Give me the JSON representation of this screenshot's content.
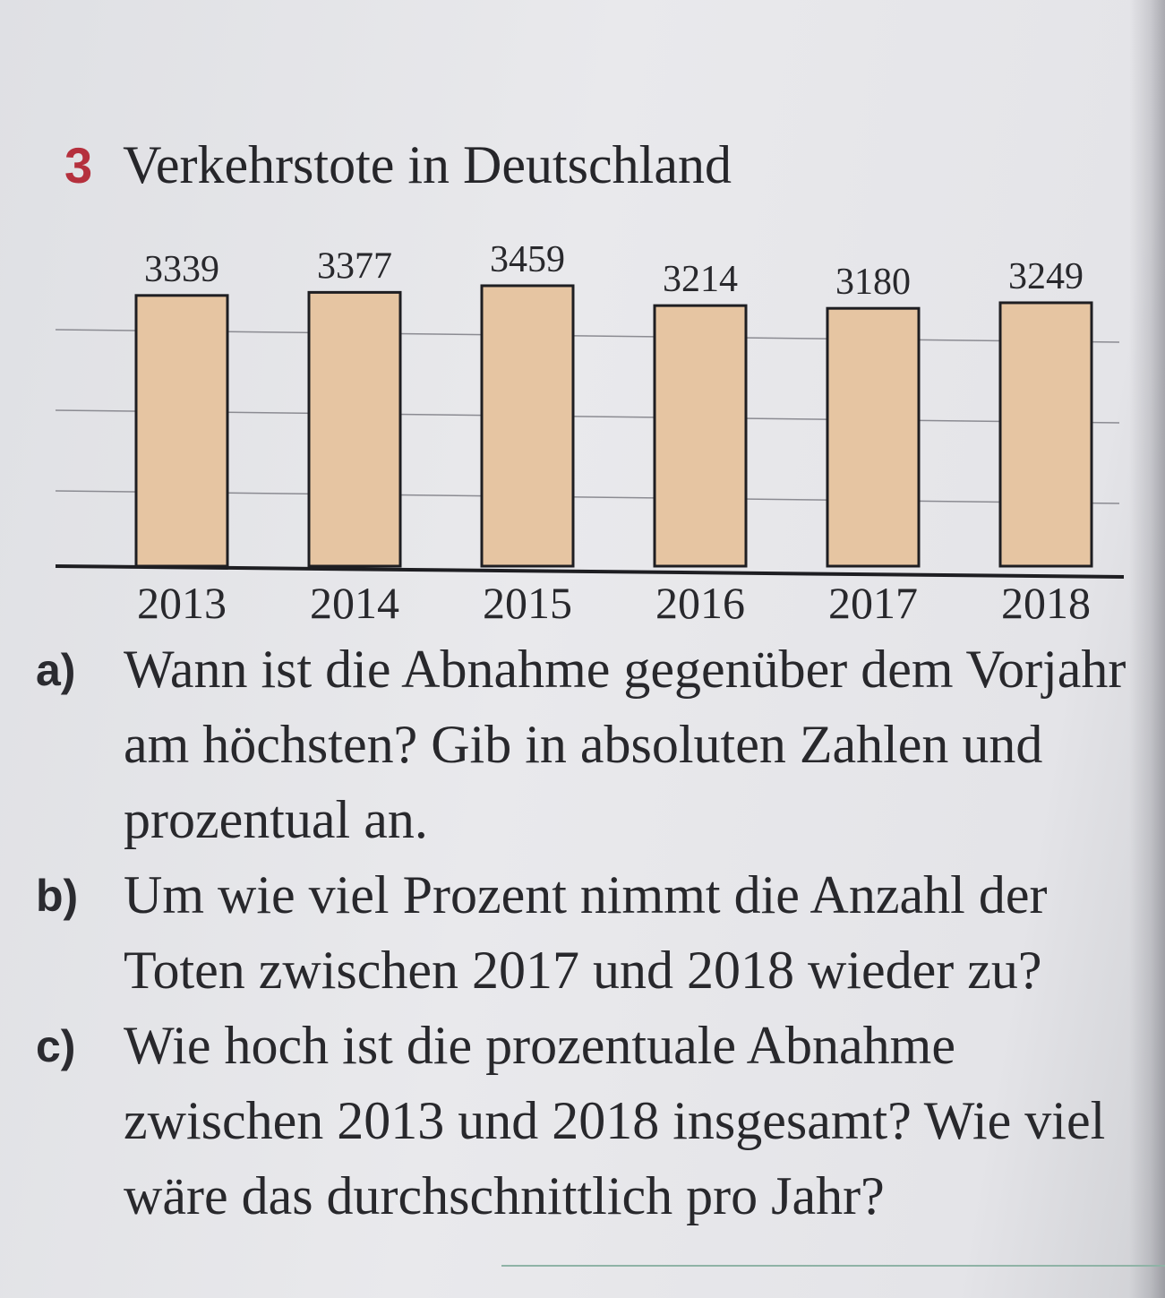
{
  "exercise": {
    "number": "3",
    "title": "Verkehrstote in Deutschland"
  },
  "chart_data": {
    "type": "bar",
    "title": "Verkehrstote in Deutschland",
    "categories": [
      "2013",
      "2014",
      "2015",
      "2016",
      "2017",
      "2018"
    ],
    "values": [
      3339,
      3377,
      3459,
      3214,
      3180,
      3249
    ],
    "data_labels": [
      "3339",
      "3377",
      "3459",
      "3214",
      "3180",
      "3249"
    ],
    "xlabel": "",
    "ylabel": "",
    "grid": true,
    "bar_color": "#e6c5a2"
  },
  "tasks": [
    {
      "label": "a)",
      "text": "Wann ist die Abnahme gegenüber dem Vorjahr am höchsten? Gib in absoluten Zahlen und prozentual an."
    },
    {
      "label": "b)",
      "text": "Um wie viel Prozent nimmt die Anzahl der Toten zwischen 2017 und 2018 wieder zu?"
    },
    {
      "label": "c)",
      "text": "Wie hoch ist die prozentuale Abnahme zwischen 2013 und 2018 insgesamt? Wie viel wäre das durchschnittlich pro Jahr?"
    }
  ]
}
